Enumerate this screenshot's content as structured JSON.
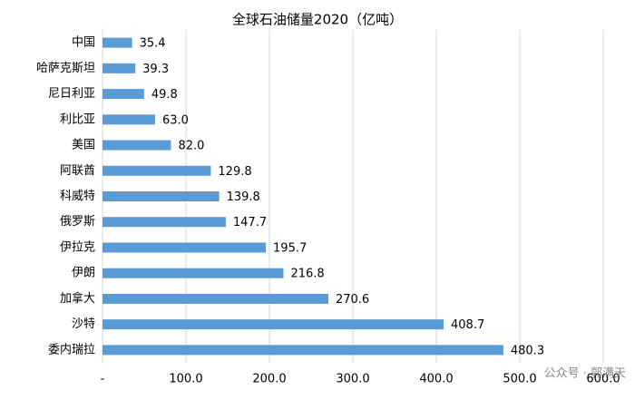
{
  "chart_data": {
    "type": "bar",
    "orientation": "horizontal",
    "title": "全球石油储量2020（亿吨）",
    "categories": [
      "中国",
      "哈萨克斯坦",
      "尼日利亚",
      "利比亚",
      "美国",
      "阿联酋",
      "科威特",
      "俄罗斯",
      "伊拉克",
      "伊朗",
      "加拿大",
      "沙特",
      "委内瑞拉"
    ],
    "values": [
      35.4,
      39.3,
      49.8,
      63.0,
      82.0,
      129.8,
      139.8,
      147.7,
      195.7,
      216.8,
      270.6,
      408.7,
      480.3
    ],
    "value_labels": [
      "35.4",
      "39.3",
      "49.8",
      "63.0",
      "82.0",
      "129.8",
      "139.8",
      "147.7",
      "195.7",
      "216.8",
      "270.6",
      "408.7",
      "480.3"
    ],
    "color": "#5b9bd5",
    "xlim": [
      0,
      600
    ],
    "xticks": [
      {
        "value": 0,
        "label": "-"
      },
      {
        "value": 100,
        "label": "100.0"
      },
      {
        "value": 200,
        "label": "200.0"
      },
      {
        "value": 300,
        "label": "300.0"
      },
      {
        "value": 400,
        "label": "400.0"
      },
      {
        "value": 500,
        "label": "500.0"
      },
      {
        "value": 600,
        "label": "600.0"
      }
    ],
    "grid": true,
    "watermark": "公众号 · 郭满天"
  }
}
